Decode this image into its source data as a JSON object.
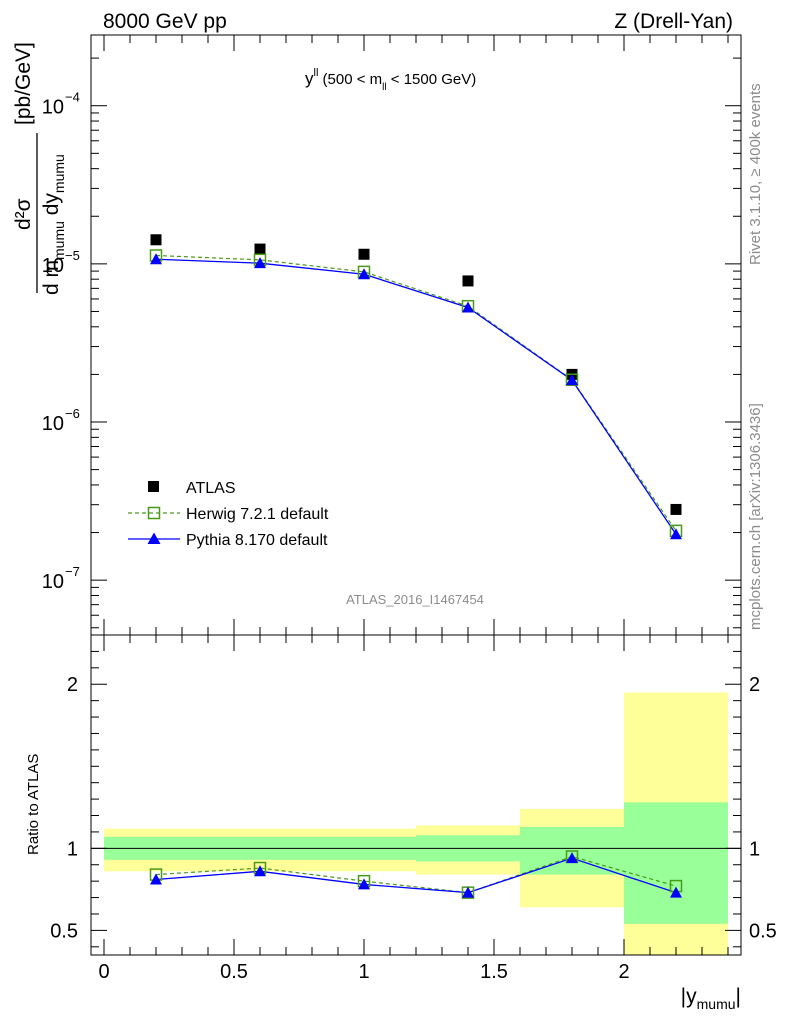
{
  "header": {
    "left": "8000 GeV pp",
    "right": "Z (Drell-Yan)"
  },
  "side_labels": {
    "rivet": "Rivet 3.1.10, ≥ 400k events",
    "mcplots": "mcplots.cern.ch [arXiv:1306.3436]"
  },
  "watermark": "ATLAS_2016_I1467454",
  "colors": {
    "data": "#000000",
    "herwig": "#4a9a1a",
    "pythia": "#0000ff",
    "band_inner": "#99ff99",
    "band_outer": "#ffff99"
  },
  "chart_data": [
    {
      "type": "scatter",
      "name": "main",
      "title_main": "y",
      "title_sup": "ll",
      "title_paren": " (500 < m",
      "title_sub": "ll",
      "title_end": " < 1500 GeV)",
      "ylabel": {
        "num": "d²σ",
        "den_a": "d m",
        "den_sub1": "mumu",
        "den_b": " dy",
        "den_sub2": "mumu",
        "unit": "[pb/GeV]"
      },
      "yscale": "log",
      "ylim": [
        4.5e-08,
        0.00028
      ],
      "xlim": [
        -0.05,
        2.45
      ],
      "ytick_labels": [
        {
          "value": 0.0001,
          "base": "10",
          "exp": "−4"
        },
        {
          "value": 1e-05,
          "base": "10",
          "exp": "−5"
        },
        {
          "value": 1e-06,
          "base": "10",
          "exp": "−6"
        },
        {
          "value": 1e-07,
          "base": "10",
          "exp": "−7"
        }
      ],
      "x": [
        0.2,
        0.6,
        1.0,
        1.4,
        1.8,
        2.2
      ],
      "series": [
        {
          "name": "ATLAS",
          "values": [
            1.42e-05,
            1.24e-05,
            1.15e-05,
            7.8e-06,
            2e-06,
            2.8e-07
          ]
        },
        {
          "name": "Herwig 7.2.1 default",
          "values": [
            1.13e-05,
            1.06e-05,
            8.9e-06,
            5.4e-06,
            1.85e-06,
            2.05e-07
          ]
        },
        {
          "name": "Pythia 8.170 default",
          "values": [
            1.07e-05,
            1.01e-05,
            8.6e-06,
            5.3e-06,
            1.84e-06,
            1.95e-07
          ]
        }
      ],
      "legend": [
        {
          "label": "ATLAS"
        },
        {
          "label": "Herwig 7.2.1 default"
        },
        {
          "label": "Pythia 8.170 default"
        }
      ],
      "legend_position": "bottom-left"
    },
    {
      "type": "scatter",
      "name": "ratio",
      "ylabel": "Ratio to ATLAS",
      "xlabel_main": "|y",
      "xlabel_sub": "mumu",
      "xlabel_end": "|",
      "ylim": [
        0.35,
        2.3
      ],
      "xlim": [
        -0.05,
        2.45
      ],
      "xtick_labels": [
        {
          "value": 0,
          "label": "0"
        },
        {
          "value": 0.5,
          "label": "0.5"
        },
        {
          "value": 1,
          "label": "1"
        },
        {
          "value": 1.5,
          "label": "1.5"
        },
        {
          "value": 2,
          "label": "2"
        }
      ],
      "ytick_labels": [
        {
          "value": 0.5,
          "label": "0.5"
        },
        {
          "value": 1,
          "label": "1"
        },
        {
          "value": 2,
          "label": "2"
        }
      ],
      "bins": [
        {
          "lo": 0.0,
          "hi": 0.4,
          "inner": [
            0.93,
            1.07
          ],
          "outer": [
            0.86,
            1.12
          ]
        },
        {
          "lo": 0.4,
          "hi": 0.8,
          "inner": [
            0.93,
            1.07
          ],
          "outer": [
            0.86,
            1.12
          ]
        },
        {
          "lo": 0.8,
          "hi": 1.2,
          "inner": [
            0.93,
            1.07
          ],
          "outer": [
            0.86,
            1.12
          ]
        },
        {
          "lo": 1.2,
          "hi": 1.6,
          "inner": [
            0.92,
            1.08
          ],
          "outer": [
            0.84,
            1.14
          ]
        },
        {
          "lo": 1.6,
          "hi": 2.0,
          "inner": [
            0.84,
            1.13
          ],
          "outer": [
            0.64,
            1.24
          ]
        },
        {
          "lo": 2.0,
          "hi": 2.4,
          "inner": [
            0.54,
            1.28
          ],
          "outer": [
            0.35,
            1.95
          ]
        }
      ],
      "x": [
        0.2,
        0.6,
        1.0,
        1.4,
        1.8,
        2.2
      ],
      "series": [
        {
          "name": "Herwig 7.2.1 default",
          "values": [
            0.84,
            0.88,
            0.8,
            0.73,
            0.95,
            0.77
          ]
        },
        {
          "name": "Pythia 8.170 default",
          "values": [
            0.81,
            0.86,
            0.78,
            0.73,
            0.94,
            0.73
          ]
        }
      ]
    }
  ]
}
